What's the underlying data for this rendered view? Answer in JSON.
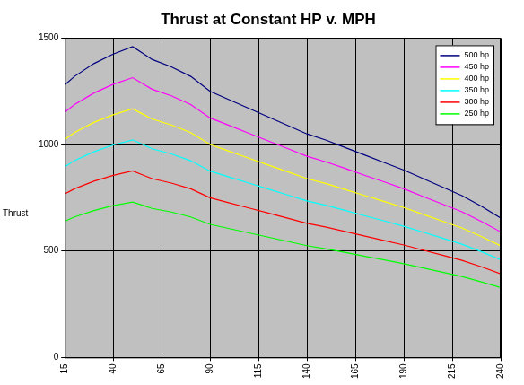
{
  "chart_data": {
    "type": "line",
    "title": "Thrust at Constant HP v. MPH",
    "y_label": "Thrust",
    "x": [
      15,
      20,
      30,
      40,
      50,
      55,
      60,
      70,
      80,
      90,
      100,
      110,
      120,
      130,
      140,
      150,
      160,
      170,
      180,
      190,
      200,
      210,
      220,
      230,
      240
    ],
    "series": [
      {
        "name": "500 hp",
        "color": "#000080",
        "values": [
          1280,
          1320,
          1380,
          1425,
          1460,
          1430,
          1400,
          1365,
          1320,
          1250,
          1210,
          1170,
          1130,
          1090,
          1050,
          1020,
          985,
          950,
          915,
          880,
          840,
          800,
          760,
          710,
          655
        ]
      },
      {
        "name": "450 hp",
        "color": "#ff00ff",
        "values": [
          1152,
          1188,
          1242,
          1283,
          1314,
          1287,
          1260,
          1229,
          1188,
          1125,
          1089,
          1053,
          1017,
          981,
          945,
          918,
          887,
          855,
          824,
          792,
          756,
          720,
          684,
          639,
          590
        ]
      },
      {
        "name": "400 hp",
        "color": "#ffff00",
        "values": [
          1024,
          1056,
          1104,
          1140,
          1168,
          1144,
          1120,
          1092,
          1056,
          1000,
          968,
          936,
          904,
          872,
          840,
          816,
          788,
          760,
          732,
          704,
          672,
          640,
          608,
          568,
          524
        ]
      },
      {
        "name": "350 hp",
        "color": "#00ffff",
        "values": [
          896,
          924,
          966,
          998,
          1022,
          1001,
          980,
          956,
          924,
          875,
          847,
          819,
          791,
          763,
          735,
          714,
          690,
          665,
          641,
          616,
          588,
          560,
          532,
          497,
          459
        ]
      },
      {
        "name": "300 hp",
        "color": "#ff0000",
        "values": [
          768,
          792,
          828,
          855,
          876,
          858,
          840,
          819,
          792,
          750,
          726,
          702,
          678,
          654,
          630,
          612,
          591,
          570,
          549,
          528,
          504,
          480,
          456,
          426,
          393
        ]
      },
      {
        "name": "250 hp",
        "color": "#00ff00",
        "values": [
          640,
          660,
          690,
          713,
          730,
          715,
          700,
          683,
          660,
          625,
          605,
          585,
          565,
          545,
          525,
          510,
          493,
          475,
          458,
          440,
          420,
          400,
          380,
          355,
          328
        ]
      }
    ],
    "xlim": [
      15,
      240
    ],
    "xticks": [
      15,
      40,
      65,
      90,
      115,
      140,
      165,
      190,
      215,
      240
    ],
    "ylim": [
      0,
      1500
    ],
    "yticks": [
      0,
      500,
      1000,
      1500
    ],
    "grid": true,
    "legend": "upper right"
  }
}
